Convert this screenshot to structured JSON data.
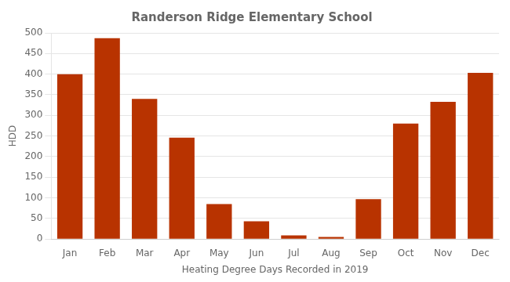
{
  "chart_data": {
    "type": "bar",
    "title": "Randerson Ridge Elementary School",
    "xlabel": "Heating Degree Days Recorded in 2019",
    "ylabel": "HDD",
    "categories": [
      "Jan",
      "Feb",
      "Mar",
      "Apr",
      "May",
      "Jun",
      "Jul",
      "Aug",
      "Sep",
      "Oct",
      "Nov",
      "Dec"
    ],
    "values": [
      400,
      487,
      340,
      246,
      85,
      43,
      9,
      5,
      97,
      280,
      333,
      403
    ],
    "color": "#b83300",
    "ylim": [
      0,
      500
    ],
    "yticks": [
      0,
      50,
      100,
      150,
      200,
      250,
      300,
      350,
      400,
      450,
      500
    ],
    "grid": true
  }
}
